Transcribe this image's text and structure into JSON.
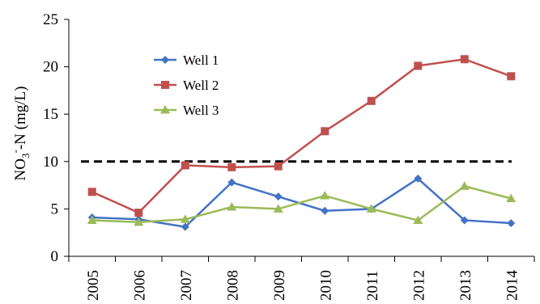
{
  "chart_data": {
    "type": "line",
    "title": "",
    "xlabel": "",
    "ylabel": {
      "main": "NO",
      "sub": "3",
      "sup": "-",
      "rest": "-N (mg/L)"
    },
    "x": [
      "2005",
      "2006",
      "2007",
      "2008",
      "2009",
      "2010",
      "2011",
      "2012",
      "2013",
      "2014"
    ],
    "ylim": [
      0,
      25
    ],
    "yticks": [
      "0",
      "5",
      "10",
      "15",
      "20",
      "25"
    ],
    "grid": false,
    "legend_position": "top-left",
    "reference_line": {
      "value": 10,
      "style": "dashed",
      "color": "#000000"
    },
    "series": [
      {
        "name": "Well 1",
        "marker": "diamond",
        "color": "#4472C4",
        "values": [
          4.1,
          3.9,
          3.1,
          7.8,
          6.3,
          4.8,
          5.0,
          8.2,
          3.8,
          3.5
        ]
      },
      {
        "name": "Well 2",
        "marker": "square",
        "color": "#C0504D",
        "values": [
          6.8,
          4.6,
          9.6,
          9.4,
          9.5,
          13.2,
          16.4,
          20.1,
          20.8,
          19.0
        ]
      },
      {
        "name": "Well 3",
        "marker": "triangle",
        "color": "#9BBB59",
        "values": [
          3.8,
          3.6,
          3.9,
          5.2,
          5.0,
          6.4,
          5.0,
          3.8,
          7.4,
          6.1
        ]
      }
    ]
  }
}
